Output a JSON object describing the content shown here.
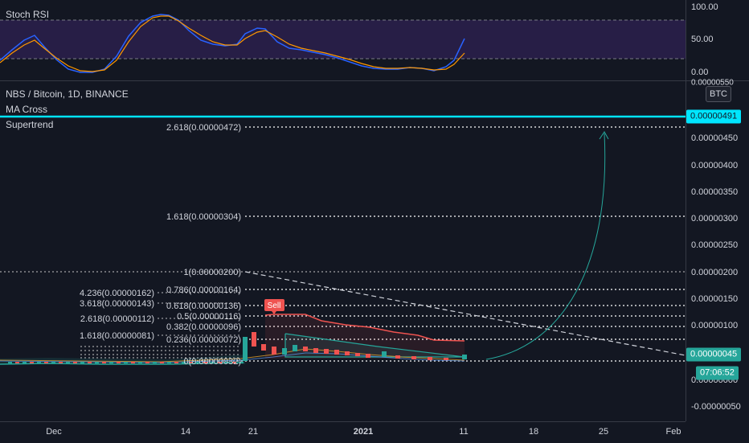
{
  "rsi": {
    "title": "Stoch RSI",
    "axis": [
      "100.00",
      "50.00",
      "0.00"
    ]
  },
  "main": {
    "symbol_title": "NBS / Bitcoin, 1D, BINANCE",
    "indicators": [
      "MA Cross",
      "Supertrend"
    ],
    "currency_button": "BTC",
    "sell_label": "Sell"
  },
  "fib_ext": [
    {
      "label": "2.618(0.00000472)"
    },
    {
      "label": "1.618(0.00000304)"
    }
  ],
  "fib_ret": [
    {
      "label": "1(0.00000200)"
    },
    {
      "label": "0.786(0.00000164)"
    },
    {
      "label": "0.618(0.00000136)"
    },
    {
      "label": "0.5(0.00000116)"
    },
    {
      "label": "0.382(0.00000096)"
    },
    {
      "label": "0.236(0.00000072)"
    },
    {
      "label": "0(0.00000032)"
    }
  ],
  "fib_left": [
    {
      "label": "4.236(0.00000162)"
    },
    {
      "label": "3.618(0.00000143)"
    },
    {
      "label": "2.618(0.00000112)"
    },
    {
      "label": "1.618(0.00000081)"
    }
  ],
  "price_axis": {
    "ticks": [
      "0.00000450",
      "0.00000400",
      "0.00000350",
      "0.00000300",
      "0.00000250",
      "0.00000200",
      "0.00000150",
      "0.00000100",
      "0.00000050",
      "0.00000000",
      "-0.00000050"
    ],
    "top_partial": "0.00000550",
    "highlight_price": "0.00000491",
    "last_price": "0.00000045",
    "countdown": "07:06:52"
  },
  "time_axis": [
    "Dec",
    "14",
    "21",
    "2021",
    "11",
    "18",
    "25",
    "Feb"
  ],
  "colors": {
    "background": "#131722",
    "cyan": "#00e5ff",
    "up": "#26a69a",
    "down": "#ef5350",
    "rsi_k": "#2962ff",
    "rsi_d": "#ff9800",
    "rsi_band": "#7e57c2"
  }
}
